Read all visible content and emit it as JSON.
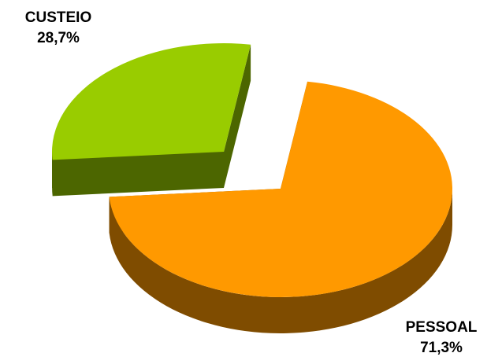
{
  "chart_data": {
    "type": "pie",
    "style": "3d-exploded",
    "title": "",
    "categories": [
      "CUSTEIO",
      "PESSOAL"
    ],
    "values": [
      28.7,
      71.3
    ],
    "value_labels": [
      "28,7%",
      "71,3%"
    ],
    "colors": {
      "CUSTEIO": {
        "top": "#99CC00",
        "side": "#4C6600"
      },
      "PESSOAL": {
        "top": "#FF9900",
        "side": "#7F4C00"
      }
    },
    "exploded_slice": "CUSTEIO"
  }
}
